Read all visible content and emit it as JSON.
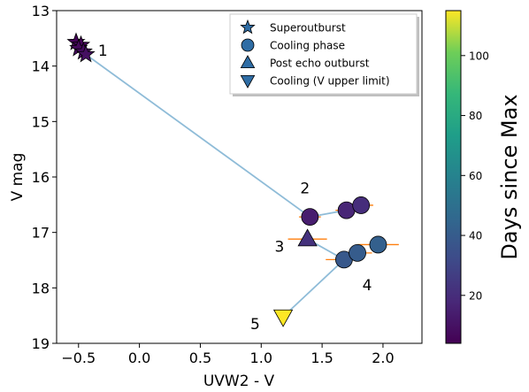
{
  "chart_data": {
    "type": "scatter",
    "xlabel": "UVW2 - V",
    "ylabel": "V mag",
    "xlim": [
      -0.68,
      2.32
    ],
    "ylim": [
      19,
      13
    ],
    "y_inverted": true,
    "x_ticks": [
      -0.5,
      0.0,
      0.5,
      1.0,
      1.5,
      2.0
    ],
    "x_tick_labels": [
      "−0.5",
      "0.0",
      "0.5",
      "1.0",
      "1.5",
      "2.0"
    ],
    "y_ticks": [
      13,
      14,
      15,
      16,
      17,
      18,
      19
    ],
    "y_tick_labels": [
      "13",
      "14",
      "15",
      "16",
      "17",
      "18",
      "19"
    ],
    "grid": false,
    "legend_position": "top-right",
    "legend": [
      {
        "label": "Superoutburst",
        "marker": "star"
      },
      {
        "label": "Cooling phase",
        "marker": "circle"
      },
      {
        "label": "Post echo outburst",
        "marker": "triangle-up"
      },
      {
        "label": "Cooling (V upper limit)",
        "marker": "triangle-down"
      }
    ],
    "colorbar": {
      "label": "Days since Max",
      "range": [
        4,
        115
      ],
      "ticks": [
        20,
        40,
        60,
        80,
        100
      ],
      "colormap": "viridis"
    },
    "errorbar_color": "#ff7f0e",
    "line_color": "#8fbcd8",
    "series": [
      {
        "name": "Superoutburst",
        "marker": "star",
        "points": [
          {
            "x": -0.52,
            "y": 13.57,
            "days": 5
          },
          {
            "x": -0.48,
            "y": 13.62,
            "days": 6
          },
          {
            "x": -0.5,
            "y": 13.68,
            "days": 7
          },
          {
            "x": -0.46,
            "y": 13.74,
            "days": 8
          },
          {
            "x": -0.44,
            "y": 13.79,
            "days": 9
          }
        ]
      },
      {
        "name": "Cooling phase",
        "marker": "circle",
        "points": [
          {
            "x": 1.4,
            "y": 16.72,
            "days": 14,
            "xerr": 0.09
          },
          {
            "x": 1.7,
            "y": 16.6,
            "days": 17,
            "xerr": 0.09
          },
          {
            "x": 1.82,
            "y": 16.51,
            "days": 20,
            "xerr": 0.1
          },
          {
            "x": 1.68,
            "y": 17.49,
            "days": 38,
            "xerr": 0.15
          },
          {
            "x": 1.79,
            "y": 17.37,
            "days": 40,
            "xerr": 0.12
          },
          {
            "x": 1.96,
            "y": 17.22,
            "days": 42,
            "xerr": 0.17
          }
        ]
      },
      {
        "name": "Post echo outburst",
        "marker": "triangle-up",
        "points": [
          {
            "x": 1.38,
            "y": 17.12,
            "days": 22,
            "xerr": 0.16
          }
        ]
      },
      {
        "name": "Cooling (V upper limit)",
        "marker": "triangle-down",
        "points": [
          {
            "x": 1.18,
            "y": 18.52,
            "days": 115
          }
        ]
      }
    ],
    "line_path": [
      {
        "x": -0.44,
        "y": 13.79
      },
      {
        "x": 1.4,
        "y": 16.72
      },
      {
        "x": 1.7,
        "y": 16.6
      },
      {
        "x": 1.82,
        "y": 16.51
      }
    ],
    "line_path_2": [
      {
        "x": 1.38,
        "y": 17.12
      },
      {
        "x": 1.68,
        "y": 17.49
      },
      {
        "x": 1.18,
        "y": 18.52
      }
    ],
    "annotations": [
      {
        "text": "1",
        "x": -0.3,
        "y": 13.72
      },
      {
        "text": "2",
        "x": 1.36,
        "y": 16.2
      },
      {
        "text": "3",
        "x": 1.15,
        "y": 17.25
      },
      {
        "text": "4",
        "x": 1.87,
        "y": 17.95
      },
      {
        "text": "5",
        "x": 0.95,
        "y": 18.65
      }
    ]
  }
}
